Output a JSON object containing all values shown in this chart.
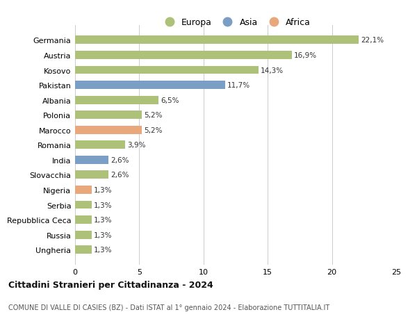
{
  "categories": [
    "Germania",
    "Austria",
    "Kosovo",
    "Pakistan",
    "Albania",
    "Polonia",
    "Marocco",
    "Romania",
    "India",
    "Slovacchia",
    "Nigeria",
    "Serbia",
    "Repubblica Ceca",
    "Russia",
    "Ungheria"
  ],
  "values": [
    22.1,
    16.9,
    14.3,
    11.7,
    6.5,
    5.2,
    5.2,
    3.9,
    2.6,
    2.6,
    1.3,
    1.3,
    1.3,
    1.3,
    1.3
  ],
  "continents": [
    "Europa",
    "Europa",
    "Europa",
    "Asia",
    "Europa",
    "Europa",
    "Africa",
    "Europa",
    "Asia",
    "Europa",
    "Africa",
    "Europa",
    "Europa",
    "Europa",
    "Europa"
  ],
  "labels": [
    "22,1%",
    "16,9%",
    "14,3%",
    "11,7%",
    "6,5%",
    "5,2%",
    "5,2%",
    "3,9%",
    "2,6%",
    "2,6%",
    "1,3%",
    "1,3%",
    "1,3%",
    "1,3%",
    "1,3%"
  ],
  "color_europa": "#adc178",
  "color_asia": "#7b9fc4",
  "color_africa": "#e8a87c",
  "bg_color": "#ffffff",
  "grid_color": "#cccccc",
  "title1": "Cittadini Stranieri per Cittadinanza - 2024",
  "title2": "COMUNE DI VALLE DI CASIES (BZ) - Dati ISTAT al 1° gennaio 2024 - Elaborazione TUTTITALIA.IT",
  "xlim": [
    0,
    25
  ],
  "xticks": [
    0,
    5,
    10,
    15,
    20,
    25
  ]
}
